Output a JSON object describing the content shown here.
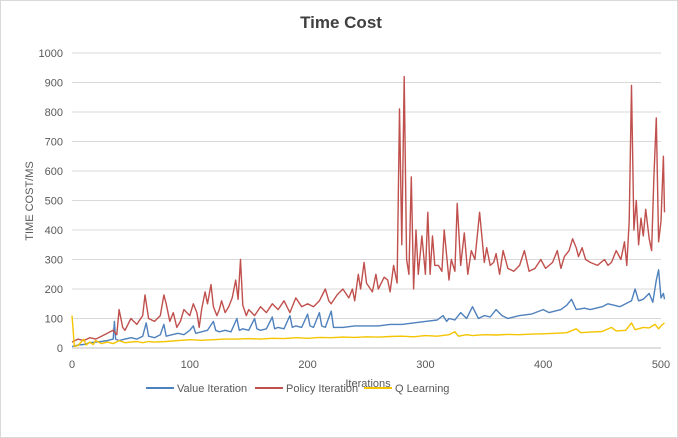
{
  "chart_data": {
    "type": "line",
    "title": "Time Cost",
    "xlabel": "Iterations",
    "ylabel": "TIME COST/MS",
    "xlim": [
      0,
      500
    ],
    "ylim": [
      0,
      1000
    ],
    "xticks": [
      0,
      100,
      200,
      300,
      400,
      500
    ],
    "yticks": [
      0,
      100,
      200,
      300,
      400,
      500,
      600,
      700,
      800,
      900,
      1000
    ],
    "grid": "horizontal",
    "legend_position": "bottom",
    "series": [
      {
        "name": "Value Iteration",
        "color": "#4f81bd",
        "points": [
          [
            0,
            5
          ],
          [
            5,
            10
          ],
          [
            10,
            12
          ],
          [
            15,
            18
          ],
          [
            20,
            20
          ],
          [
            25,
            22
          ],
          [
            30,
            25
          ],
          [
            35,
            30
          ],
          [
            36,
            90
          ],
          [
            37,
            30
          ],
          [
            40,
            25
          ],
          [
            45,
            30
          ],
          [
            50,
            35
          ],
          [
            55,
            30
          ],
          [
            60,
            40
          ],
          [
            63,
            85
          ],
          [
            65,
            40
          ],
          [
            70,
            35
          ],
          [
            75,
            45
          ],
          [
            78,
            80
          ],
          [
            80,
            40
          ],
          [
            85,
            45
          ],
          [
            90,
            50
          ],
          [
            95,
            45
          ],
          [
            100,
            60
          ],
          [
            103,
            75
          ],
          [
            105,
            50
          ],
          [
            110,
            55
          ],
          [
            115,
            60
          ],
          [
            120,
            90
          ],
          [
            122,
            60
          ],
          [
            125,
            55
          ],
          [
            130,
            60
          ],
          [
            135,
            55
          ],
          [
            140,
            100
          ],
          [
            142,
            60
          ],
          [
            145,
            65
          ],
          [
            150,
            60
          ],
          [
            155,
            100
          ],
          [
            157,
            65
          ],
          [
            160,
            60
          ],
          [
            165,
            65
          ],
          [
            170,
            105
          ],
          [
            172,
            65
          ],
          [
            175,
            70
          ],
          [
            180,
            65
          ],
          [
            185,
            110
          ],
          [
            187,
            70
          ],
          [
            190,
            75
          ],
          [
            195,
            70
          ],
          [
            200,
            115
          ],
          [
            202,
            75
          ],
          [
            205,
            70
          ],
          [
            210,
            120
          ],
          [
            212,
            75
          ],
          [
            215,
            70
          ],
          [
            220,
            125
          ],
          [
            222,
            70
          ],
          [
            230,
            70
          ],
          [
            240,
            75
          ],
          [
            250,
            75
          ],
          [
            260,
            75
          ],
          [
            270,
            80
          ],
          [
            280,
            80
          ],
          [
            290,
            85
          ],
          [
            300,
            90
          ],
          [
            310,
            95
          ],
          [
            315,
            110
          ],
          [
            318,
            90
          ],
          [
            320,
            100
          ],
          [
            325,
            95
          ],
          [
            330,
            120
          ],
          [
            335,
            100
          ],
          [
            340,
            140
          ],
          [
            345,
            100
          ],
          [
            350,
            110
          ],
          [
            355,
            105
          ],
          [
            360,
            130
          ],
          [
            365,
            110
          ],
          [
            370,
            100
          ],
          [
            380,
            110
          ],
          [
            390,
            115
          ],
          [
            400,
            130
          ],
          [
            405,
            120
          ],
          [
            410,
            125
          ],
          [
            415,
            130
          ],
          [
            420,
            145
          ],
          [
            424,
            165
          ],
          [
            428,
            130
          ],
          [
            435,
            135
          ],
          [
            440,
            130
          ],
          [
            450,
            140
          ],
          [
            455,
            150
          ],
          [
            460,
            145
          ],
          [
            465,
            140
          ],
          [
            470,
            150
          ],
          [
            475,
            160
          ],
          [
            478,
            200
          ],
          [
            481,
            160
          ],
          [
            485,
            165
          ],
          [
            490,
            185
          ],
          [
            493,
            155
          ],
          [
            496,
            230
          ],
          [
            498,
            265
          ],
          [
            500,
            170
          ],
          [
            502,
            185
          ],
          [
            503,
            165
          ]
        ]
      },
      {
        "name": "Policy Iteration",
        "color": "#c0504d",
        "points": [
          [
            0,
            20
          ],
          [
            5,
            30
          ],
          [
            10,
            25
          ],
          [
            15,
            35
          ],
          [
            20,
            30
          ],
          [
            25,
            40
          ],
          [
            30,
            50
          ],
          [
            35,
            60
          ],
          [
            38,
            45
          ],
          [
            40,
            130
          ],
          [
            43,
            70
          ],
          [
            45,
            60
          ],
          [
            50,
            100
          ],
          [
            55,
            80
          ],
          [
            60,
            110
          ],
          [
            62,
            180
          ],
          [
            65,
            100
          ],
          [
            70,
            90
          ],
          [
            75,
            110
          ],
          [
            78,
            180
          ],
          [
            80,
            150
          ],
          [
            83,
            90
          ],
          [
            86,
            120
          ],
          [
            89,
            70
          ],
          [
            92,
            90
          ],
          [
            95,
            130
          ],
          [
            100,
            110
          ],
          [
            103,
            150
          ],
          [
            106,
            120
          ],
          [
            108,
            70
          ],
          [
            110,
            130
          ],
          [
            113,
            190
          ],
          [
            115,
            150
          ],
          [
            118,
            215
          ],
          [
            120,
            140
          ],
          [
            123,
            110
          ],
          [
            125,
            130
          ],
          [
            127,
            160
          ],
          [
            130,
            120
          ],
          [
            133,
            140
          ],
          [
            136,
            170
          ],
          [
            139,
            230
          ],
          [
            141,
            165
          ],
          [
            143,
            300
          ],
          [
            145,
            145
          ],
          [
            148,
            110
          ],
          [
            150,
            130
          ],
          [
            155,
            110
          ],
          [
            160,
            140
          ],
          [
            165,
            120
          ],
          [
            170,
            150
          ],
          [
            175,
            130
          ],
          [
            180,
            160
          ],
          [
            185,
            120
          ],
          [
            190,
            170
          ],
          [
            195,
            140
          ],
          [
            200,
            150
          ],
          [
            205,
            140
          ],
          [
            210,
            160
          ],
          [
            215,
            200
          ],
          [
            218,
            160
          ],
          [
            220,
            150
          ],
          [
            225,
            180
          ],
          [
            230,
            200
          ],
          [
            235,
            170
          ],
          [
            238,
            200
          ],
          [
            240,
            160
          ],
          [
            243,
            250
          ],
          [
            245,
            200
          ],
          [
            248,
            290
          ],
          [
            250,
            220
          ],
          [
            255,
            190
          ],
          [
            258,
            250
          ],
          [
            260,
            200
          ],
          [
            265,
            240
          ],
          [
            268,
            230
          ],
          [
            270,
            190
          ],
          [
            273,
            280
          ],
          [
            276,
            220
          ],
          [
            278,
            810
          ],
          [
            280,
            350
          ],
          [
            282,
            920
          ],
          [
            284,
            300
          ],
          [
            286,
            250
          ],
          [
            288,
            580
          ],
          [
            290,
            200
          ],
          [
            292,
            400
          ],
          [
            294,
            250
          ],
          [
            297,
            380
          ],
          [
            300,
            250
          ],
          [
            302,
            460
          ],
          [
            304,
            250
          ],
          [
            306,
            380
          ],
          [
            308,
            280
          ],
          [
            311,
            280
          ],
          [
            314,
            260
          ],
          [
            316,
            400
          ],
          [
            320,
            230
          ],
          [
            322,
            300
          ],
          [
            325,
            260
          ],
          [
            327,
            490
          ],
          [
            330,
            280
          ],
          [
            333,
            390
          ],
          [
            336,
            250
          ],
          [
            339,
            330
          ],
          [
            342,
            300
          ],
          [
            346,
            460
          ],
          [
            350,
            290
          ],
          [
            352,
            340
          ],
          [
            355,
            280
          ],
          [
            358,
            290
          ],
          [
            360,
            320
          ],
          [
            363,
            250
          ],
          [
            366,
            330
          ],
          [
            370,
            270
          ],
          [
            375,
            260
          ],
          [
            380,
            280
          ],
          [
            384,
            330
          ],
          [
            388,
            260
          ],
          [
            393,
            270
          ],
          [
            398,
            300
          ],
          [
            402,
            270
          ],
          [
            408,
            290
          ],
          [
            412,
            330
          ],
          [
            415,
            270
          ],
          [
            418,
            310
          ],
          [
            422,
            330
          ],
          [
            425,
            370
          ],
          [
            428,
            340
          ],
          [
            430,
            310
          ],
          [
            433,
            340
          ],
          [
            436,
            300
          ],
          [
            440,
            290
          ],
          [
            446,
            280
          ],
          [
            452,
            300
          ],
          [
            455,
            280
          ],
          [
            458,
            290
          ],
          [
            462,
            330
          ],
          [
            466,
            300
          ],
          [
            469,
            360
          ],
          [
            471,
            280
          ],
          [
            473,
            430
          ],
          [
            475,
            890
          ],
          [
            477,
            400
          ],
          [
            479,
            500
          ],
          [
            481,
            350
          ],
          [
            483,
            440
          ],
          [
            485,
            380
          ],
          [
            487,
            470
          ],
          [
            490,
            370
          ],
          [
            492,
            330
          ],
          [
            494,
            580
          ],
          [
            496,
            780
          ],
          [
            498,
            360
          ],
          [
            500,
            430
          ],
          [
            502,
            650
          ],
          [
            503,
            460
          ]
        ]
      },
      {
        "name": "Q Learning",
        "color": "#f4c400",
        "points": [
          [
            0,
            110
          ],
          [
            2,
            5
          ],
          [
            5,
            8
          ],
          [
            10,
            30
          ],
          [
            12,
            10
          ],
          [
            15,
            20
          ],
          [
            18,
            12
          ],
          [
            20,
            25
          ],
          [
            25,
            15
          ],
          [
            30,
            20
          ],
          [
            35,
            15
          ],
          [
            40,
            25
          ],
          [
            45,
            18
          ],
          [
            50,
            20
          ],
          [
            55,
            22
          ],
          [
            60,
            18
          ],
          [
            65,
            22
          ],
          [
            70,
            20
          ],
          [
            80,
            22
          ],
          [
            90,
            25
          ],
          [
            100,
            28
          ],
          [
            110,
            26
          ],
          [
            120,
            28
          ],
          [
            130,
            30
          ],
          [
            140,
            30
          ],
          [
            150,
            32
          ],
          [
            160,
            30
          ],
          [
            170,
            33
          ],
          [
            180,
            32
          ],
          [
            190,
            35
          ],
          [
            200,
            33
          ],
          [
            210,
            36
          ],
          [
            220,
            35
          ],
          [
            230,
            37
          ],
          [
            240,
            36
          ],
          [
            250,
            38
          ],
          [
            260,
            37
          ],
          [
            270,
            39
          ],
          [
            280,
            40
          ],
          [
            290,
            38
          ],
          [
            300,
            42
          ],
          [
            310,
            40
          ],
          [
            320,
            45
          ],
          [
            325,
            55
          ],
          [
            328,
            40
          ],
          [
            335,
            45
          ],
          [
            340,
            42
          ],
          [
            350,
            45
          ],
          [
            360,
            44
          ],
          [
            370,
            46
          ],
          [
            380,
            45
          ],
          [
            390,
            47
          ],
          [
            400,
            48
          ],
          [
            410,
            50
          ],
          [
            420,
            52
          ],
          [
            428,
            65
          ],
          [
            432,
            52
          ],
          [
            440,
            54
          ],
          [
            450,
            56
          ],
          [
            458,
            70
          ],
          [
            462,
            58
          ],
          [
            470,
            60
          ],
          [
            475,
            85
          ],
          [
            478,
            62
          ],
          [
            485,
            70
          ],
          [
            490,
            68
          ],
          [
            495,
            80
          ],
          [
            498,
            65
          ],
          [
            500,
            75
          ],
          [
            503,
            85
          ]
        ]
      }
    ]
  }
}
